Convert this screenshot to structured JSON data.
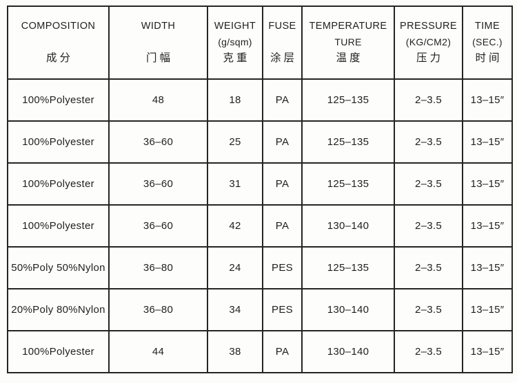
{
  "table": {
    "columns": [
      {
        "en": "COMPOSITION",
        "sub": "",
        "cn": "成分"
      },
      {
        "en": "WIDTH",
        "sub": "",
        "cn": "门幅"
      },
      {
        "en": "WEIGHT",
        "sub": "(g/sqm)",
        "cn": "克重"
      },
      {
        "en": "FUSE",
        "sub": "",
        "cn": "涂层"
      },
      {
        "en": "TEMPERATURE",
        "sub": "TURE",
        "cn": "温度"
      },
      {
        "en": "PRESSURE",
        "sub": "(KG/CM2)",
        "cn": "压力"
      },
      {
        "en": "TIME",
        "sub": "(SEC.)",
        "cn": "时间"
      }
    ],
    "rows": [
      [
        "100%Polyester",
        "48",
        "18",
        "PA",
        "125–135",
        "2–3.5",
        "13–15″"
      ],
      [
        "100%Polyester",
        "36–60",
        "25",
        "PA",
        "125–135",
        "2–3.5",
        "13–15″"
      ],
      [
        "100%Polyester",
        "36–60",
        "31",
        "PA",
        "125–135",
        "2–3.5",
        "13–15″"
      ],
      [
        "100%Polyester",
        "36–60",
        "42",
        "PA",
        "130–140",
        "2–3.5",
        "13–15″"
      ],
      [
        "50%Poly 50%Nylon",
        "36–80",
        "24",
        "PES",
        "125–135",
        "2–3.5",
        "13–15″"
      ],
      [
        "20%Poly 80%Nylon",
        "36–80",
        "34",
        "PES",
        "130–140",
        "2–3.5",
        "13–15″"
      ],
      [
        "100%Polyester",
        "44",
        "38",
        "PA",
        "130–140",
        "2–3.5",
        "13–15″"
      ]
    ]
  },
  "colors": {
    "background": "#fcfcfa",
    "border": "#242422",
    "text": "#1f1f1f"
  }
}
